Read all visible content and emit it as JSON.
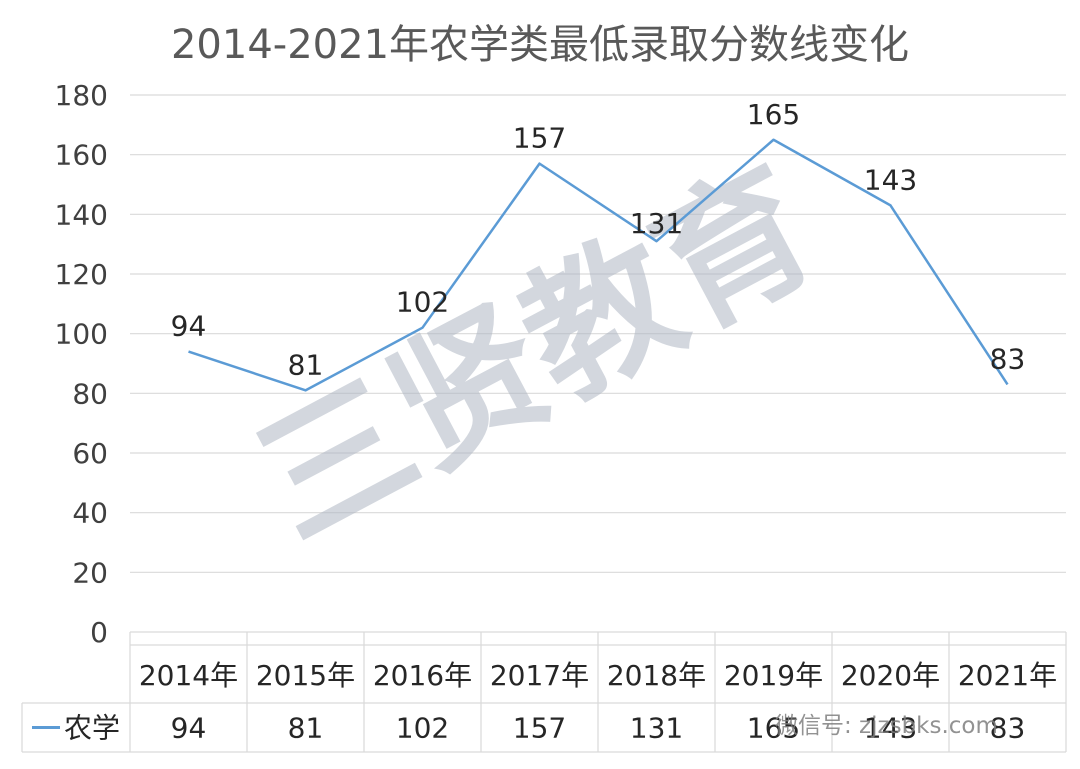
{
  "chart_data": {
    "type": "line",
    "title": "2014-2021年农学类最低录取分数线变化",
    "categories": [
      "2014年",
      "2015年",
      "2016年",
      "2017年",
      "2018年",
      "2019年",
      "2020年",
      "2021年"
    ],
    "series": [
      {
        "name": "农学",
        "values": [
          94,
          81,
          102,
          157,
          131,
          165,
          143,
          83
        ],
        "color": "#5b9bd5"
      }
    ],
    "ylim": [
      0,
      180
    ],
    "yticks": [
      0,
      20,
      40,
      60,
      80,
      100,
      120,
      140,
      160,
      180
    ],
    "grid": true,
    "legend": "data-table",
    "data_table": true
  },
  "watermark": {
    "text": "三贤教育",
    "source": "微信号: zjzsbks.com"
  },
  "colors": {
    "gridline": "#d9d9d9",
    "table_border": "#d9d9d9",
    "watermark": "#b0b8c4"
  }
}
